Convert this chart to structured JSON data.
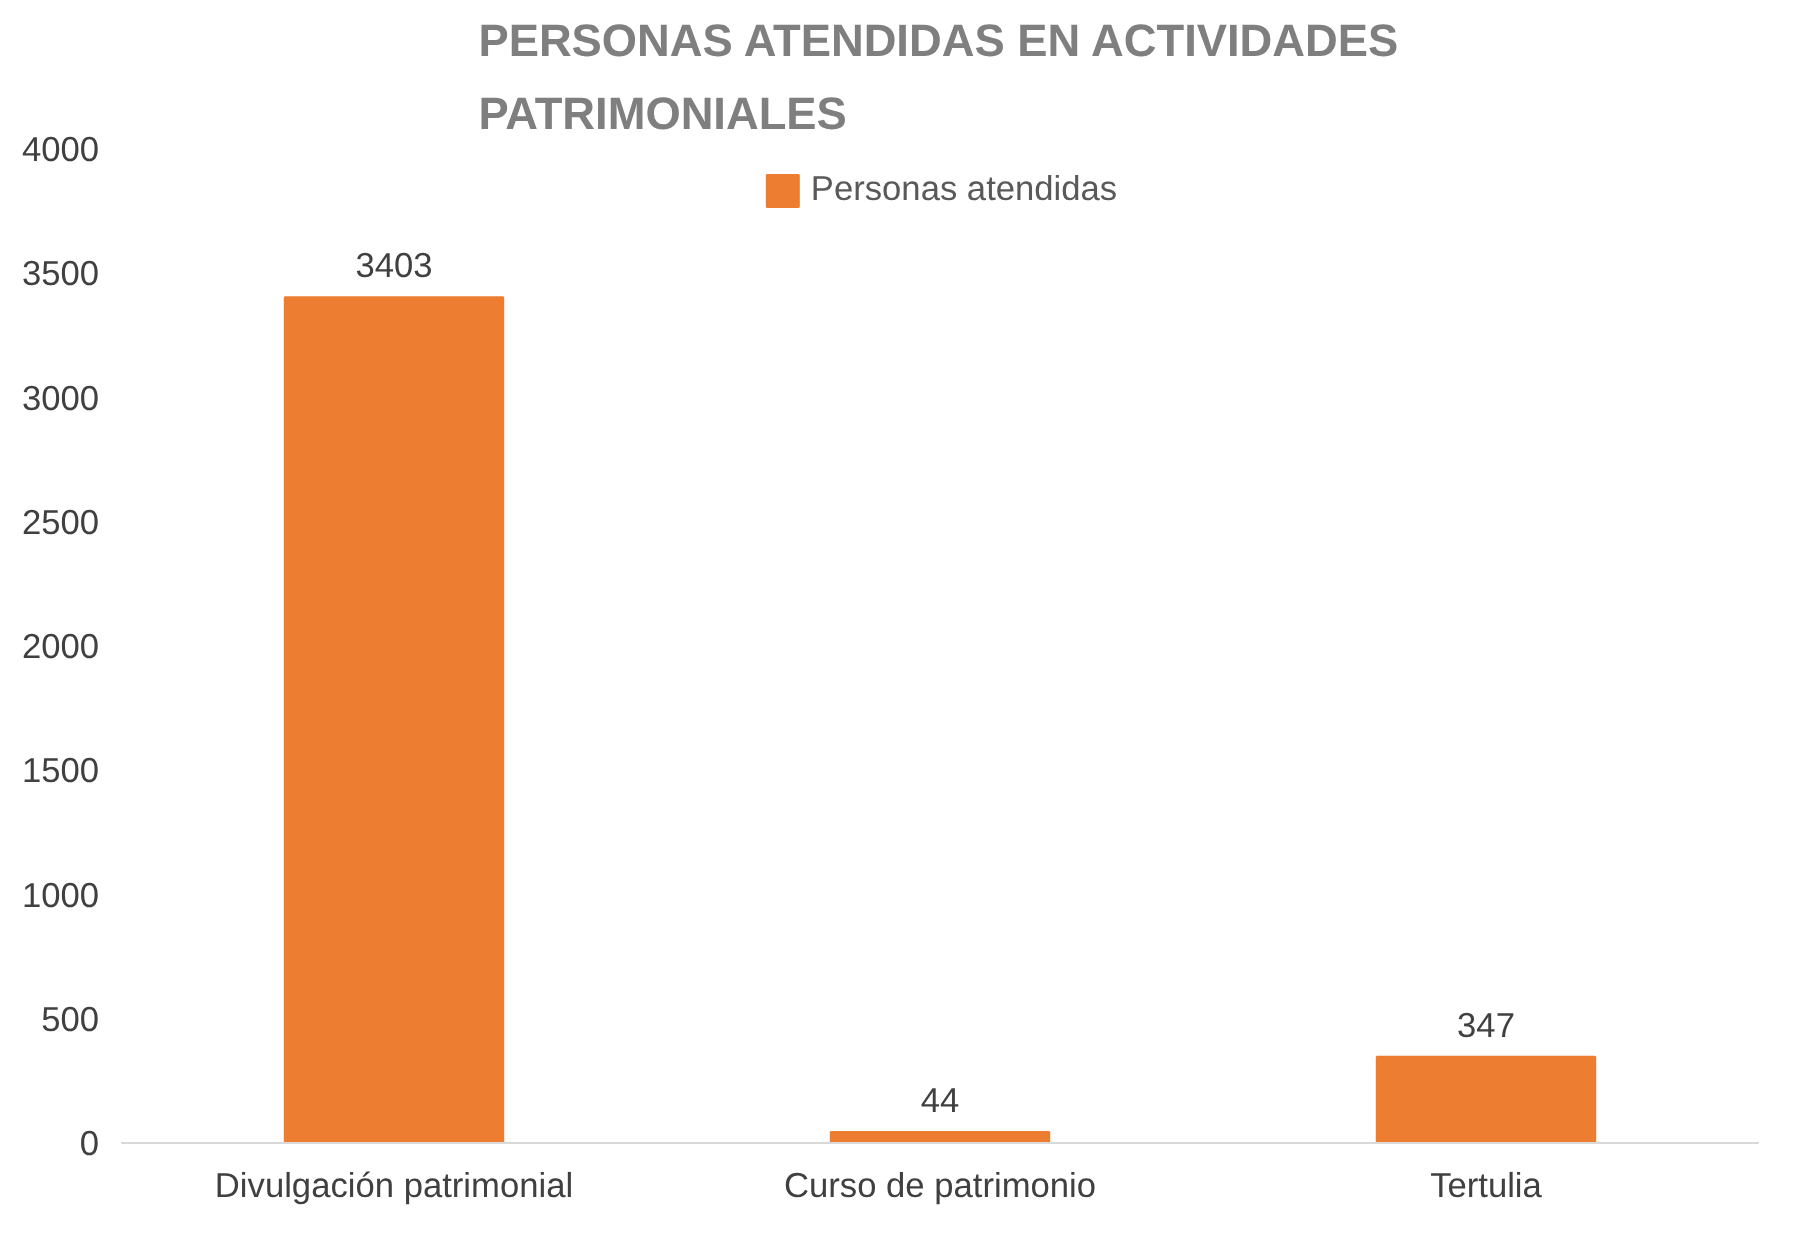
{
  "chart_data": {
    "type": "bar",
    "title": "PERSONAS ATENDIDAS EN ACTIVIDADES\nPATRIMONIALES",
    "categories": [
      "Divulgación patrimonial",
      "Curso de patrimonio",
      "Tertulia"
    ],
    "series": [
      {
        "name": "Personas atendidas",
        "color": "#ed7d31",
        "values": [
          3403,
          44,
          347
        ]
      }
    ],
    "ylim": [
      0,
      4000
    ],
    "yticks": [
      0,
      500,
      1000,
      1500,
      2000,
      2500,
      3000,
      3500,
      4000
    ],
    "grid": false,
    "legend": "top",
    "data_labels": true
  }
}
